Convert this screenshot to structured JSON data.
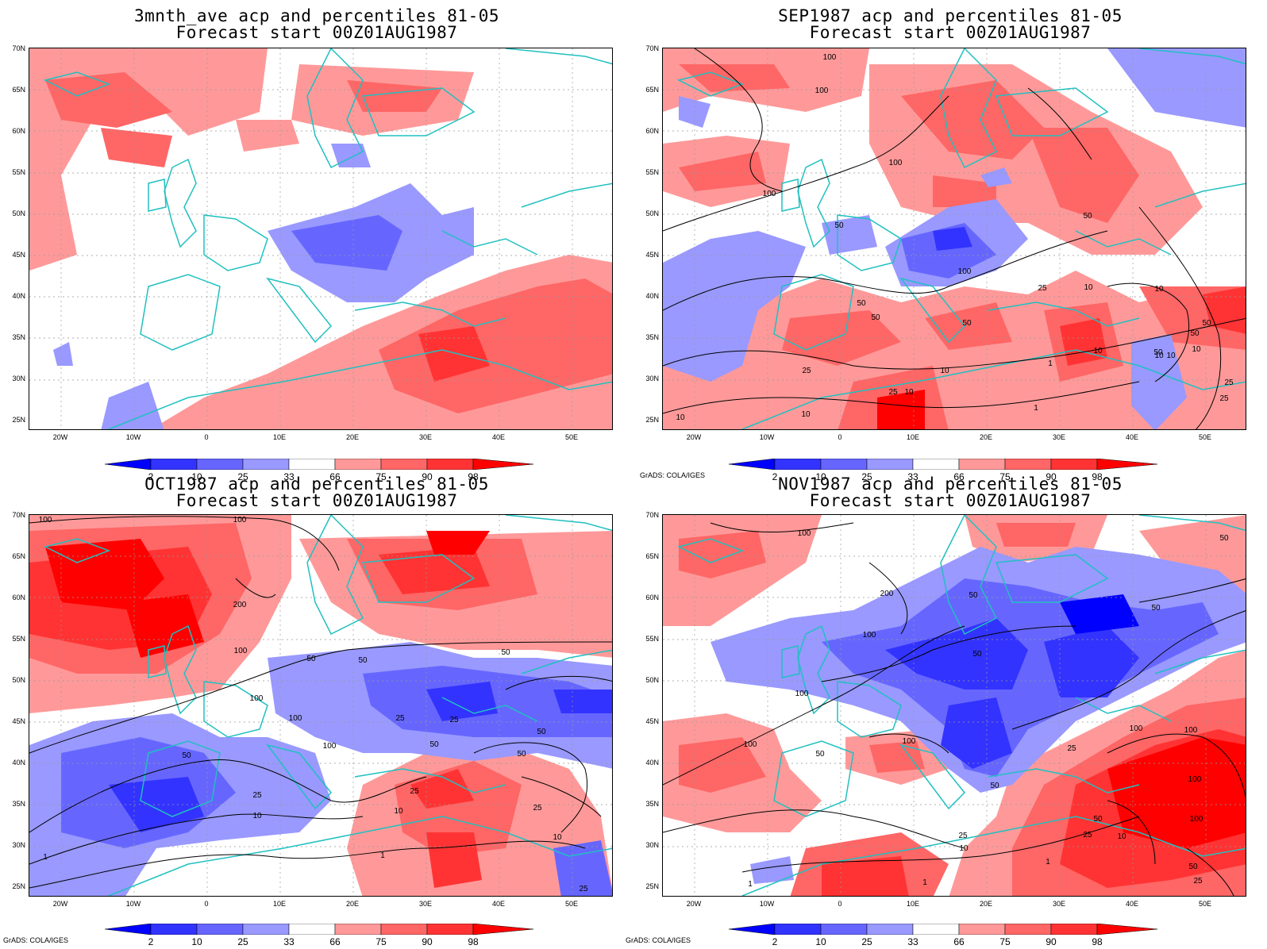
{
  "panels": [
    {
      "id": "p1",
      "title_line1": "3mnth_ave acp and percentiles 81-05",
      "title_line2": "Forecast start 00Z01AUG1987",
      "credit": "",
      "contour_labels": []
    },
    {
      "id": "p2",
      "title_line1": "SEP1987 acp and percentiles 81-05",
      "title_line2": "Forecast start 00Z01AUG1987",
      "credit": "GrADS: COLA/IGES",
      "contour_labels": [
        "100",
        "100",
        "100",
        "100",
        "50",
        "50",
        "100",
        "50",
        "50",
        "25",
        "50",
        "10",
        "10",
        "10",
        "25",
        "1",
        "1",
        "10",
        "25",
        "10",
        "10",
        "50",
        "50",
        "10",
        "10",
        "50",
        "25",
        "10",
        "10",
        "25"
      ]
    },
    {
      "id": "p3",
      "title_line1": "OCT1987 acp and percentiles 81-05",
      "title_line2": "Forecast start 00Z01AUG1987",
      "credit": "GrADS: COLA/IGES",
      "contour_labels": [
        "100",
        "100",
        "200",
        "100",
        "50",
        "50",
        "50",
        "100",
        "100",
        "25",
        "25",
        "50",
        "100",
        "50",
        "25",
        "10",
        "50",
        "25",
        "10",
        "50",
        "25",
        "10",
        "1",
        "1",
        "25"
      ]
    },
    {
      "id": "p4",
      "title_line1": "NOV1987 acp and percentiles 81-05",
      "title_line2": "Forecast start 00Z01AUG1987",
      "credit": "GrADS: COLA/IGES",
      "contour_labels": [
        "100",
        "50",
        "200",
        "50",
        "50",
        "100",
        "50",
        "100",
        "100",
        "100",
        "50",
        "100",
        "50",
        "25",
        "10",
        "100",
        "25",
        "100",
        "50",
        "25",
        "10",
        "1",
        "1",
        "1",
        "50",
        "25",
        "100"
      ]
    }
  ],
  "lat_labels": [
    "70N",
    "65N",
    "60N",
    "55N",
    "50N",
    "45N",
    "40N",
    "35N",
    "30N",
    "25N"
  ],
  "lon_labels": [
    "20W",
    "10W",
    "0",
    "10E",
    "20E",
    "30E",
    "40E",
    "50E"
  ],
  "colorbar": {
    "labels": [
      "2",
      "10",
      "25",
      "33",
      "66",
      "75",
      "90",
      "98"
    ],
    "colors": [
      "#0000ff",
      "#3333ff",
      "#6666ff",
      "#9999ff",
      "#ffffff",
      "#ff9999",
      "#ff6666",
      "#ff3333",
      "#ff0000"
    ]
  },
  "colors": {
    "coast": "#20c0c0",
    "contour": "#000000"
  }
}
